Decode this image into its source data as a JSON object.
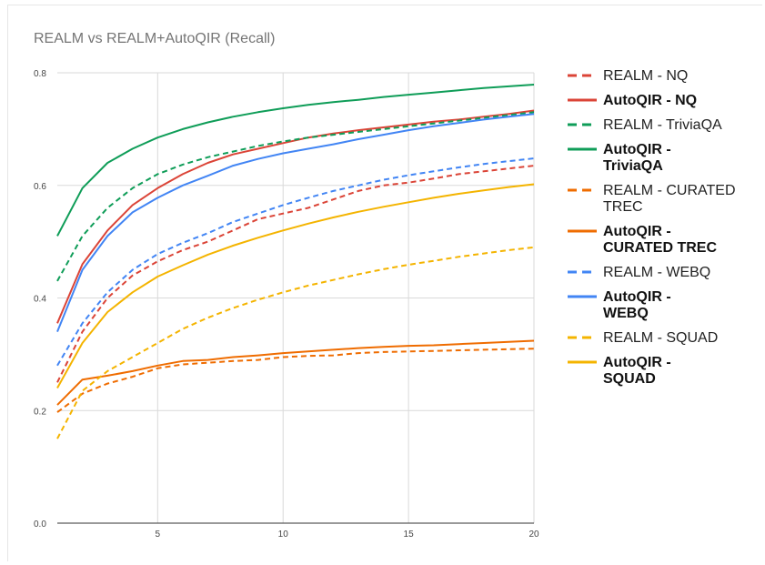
{
  "chart_data": {
    "type": "line",
    "title": "REALM vs REALM+AutoQIR (Recall)",
    "xlabel": "",
    "ylabel": "",
    "xlim": [
      1,
      20
    ],
    "ylim": [
      0,
      0.8
    ],
    "x": [
      1,
      2,
      3,
      4,
      5,
      6,
      7,
      8,
      9,
      10,
      11,
      12,
      13,
      14,
      15,
      16,
      17,
      18,
      19,
      20
    ],
    "x_ticks": [
      5,
      10,
      15,
      20
    ],
    "y_ticks": [
      0.0,
      0.2,
      0.4,
      0.6,
      0.8
    ],
    "y_tick_labels": [
      "0.0",
      "0.2",
      "0.4",
      "0.6",
      "0.8"
    ],
    "grid": true,
    "legend_position": "right",
    "series": [
      {
        "name": "REALM - NQ",
        "color": "#db4437",
        "dash": true,
        "bold": false,
        "values": [
          0.25,
          0.34,
          0.4,
          0.44,
          0.465,
          0.485,
          0.5,
          0.52,
          0.54,
          0.55,
          0.56,
          0.575,
          0.59,
          0.6,
          0.605,
          0.612,
          0.62,
          0.625,
          0.63,
          0.635
        ]
      },
      {
        "name": "AutoQIR - NQ",
        "color": "#db4437",
        "dash": false,
        "bold": true,
        "values": [
          0.355,
          0.46,
          0.52,
          0.565,
          0.595,
          0.62,
          0.64,
          0.655,
          0.665,
          0.675,
          0.685,
          0.692,
          0.698,
          0.703,
          0.708,
          0.713,
          0.717,
          0.722,
          0.727,
          0.733
        ]
      },
      {
        "name": "REALM - TriviaQA",
        "color": "#0f9d58",
        "dash": true,
        "bold": false,
        "values": [
          0.43,
          0.51,
          0.56,
          0.595,
          0.62,
          0.637,
          0.65,
          0.66,
          0.67,
          0.678,
          0.685,
          0.69,
          0.695,
          0.7,
          0.705,
          0.71,
          0.715,
          0.72,
          0.725,
          0.73
        ]
      },
      {
        "name": "AutoQIR - TriviaQA",
        "color": "#0f9d58",
        "dash": false,
        "bold": true,
        "values": [
          0.51,
          0.595,
          0.64,
          0.665,
          0.685,
          0.7,
          0.712,
          0.722,
          0.73,
          0.737,
          0.743,
          0.748,
          0.752,
          0.757,
          0.761,
          0.765,
          0.769,
          0.773,
          0.776,
          0.779
        ]
      },
      {
        "name": "REALM - CURATED TREC",
        "color": "#ef6c00",
        "dash": true,
        "bold": false,
        "values": [
          0.197,
          0.23,
          0.248,
          0.26,
          0.275,
          0.282,
          0.285,
          0.288,
          0.29,
          0.295,
          0.297,
          0.298,
          0.302,
          0.304,
          0.305,
          0.306,
          0.307,
          0.308,
          0.309,
          0.31
        ]
      },
      {
        "name": "AutoQIR - CURATED TREC",
        "color": "#ef6c00",
        "dash": false,
        "bold": true,
        "values": [
          0.21,
          0.255,
          0.262,
          0.27,
          0.28,
          0.288,
          0.29,
          0.295,
          0.298,
          0.302,
          0.305,
          0.308,
          0.311,
          0.313,
          0.315,
          0.316,
          0.318,
          0.32,
          0.322,
          0.324
        ]
      },
      {
        "name": "REALM - WEBQ",
        "color": "#4285f4",
        "dash": true,
        "bold": false,
        "values": [
          0.28,
          0.355,
          0.41,
          0.45,
          0.478,
          0.498,
          0.515,
          0.535,
          0.55,
          0.565,
          0.578,
          0.59,
          0.6,
          0.61,
          0.618,
          0.625,
          0.632,
          0.638,
          0.643,
          0.648
        ]
      },
      {
        "name": "AutoQIR - WEBQ",
        "color": "#4285f4",
        "dash": false,
        "bold": true,
        "values": [
          0.34,
          0.45,
          0.51,
          0.552,
          0.578,
          0.6,
          0.617,
          0.635,
          0.647,
          0.657,
          0.665,
          0.673,
          0.682,
          0.69,
          0.698,
          0.705,
          0.711,
          0.717,
          0.722,
          0.727
        ]
      },
      {
        "name": "REALM - SQUAD",
        "color": "#f4b400",
        "dash": true,
        "bold": false,
        "values": [
          0.15,
          0.235,
          0.27,
          0.295,
          0.32,
          0.345,
          0.365,
          0.382,
          0.397,
          0.41,
          0.422,
          0.432,
          0.442,
          0.451,
          0.459,
          0.466,
          0.473,
          0.479,
          0.485,
          0.49
        ]
      },
      {
        "name": "AutoQIR - SQUAD",
        "color": "#f4b400",
        "dash": false,
        "bold": true,
        "values": [
          0.24,
          0.32,
          0.375,
          0.41,
          0.438,
          0.458,
          0.477,
          0.493,
          0.507,
          0.52,
          0.532,
          0.543,
          0.553,
          0.562,
          0.57,
          0.578,
          0.585,
          0.591,
          0.597,
          0.602
        ]
      }
    ]
  }
}
